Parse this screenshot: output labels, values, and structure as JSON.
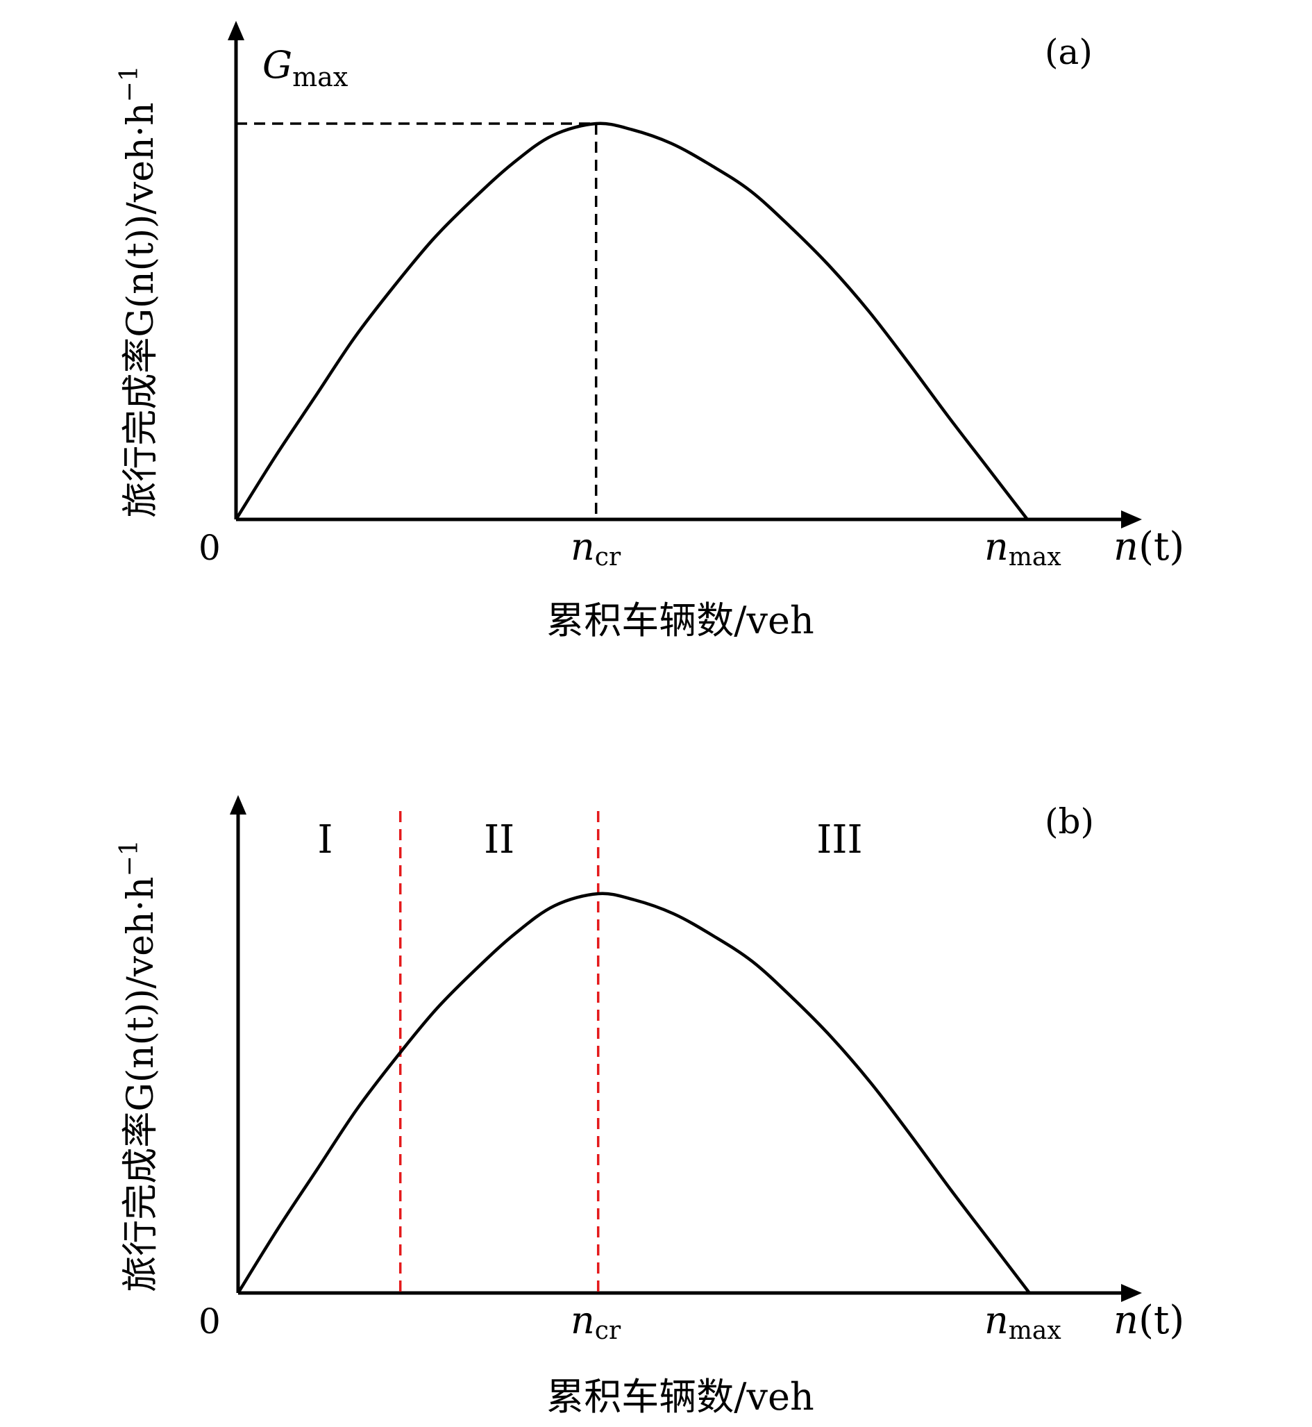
{
  "chart_data": [
    {
      "panel": "(a)",
      "type": "line",
      "ylabel": "旅行完成率G(n(t))/veh·h",
      "ylabel_sup": "−1",
      "xlabel": "累积车辆数/veh",
      "x_axis_symbol": {
        "main": "n",
        "rest": "(t)"
      },
      "origin_label": "0",
      "ticks": [
        {
          "main": "n",
          "sub": "cr",
          "x": 0.455
        },
        {
          "main": "n",
          "sub": "max",
          "x": 1.0
        }
      ],
      "peak_label": {
        "main": "G",
        "sub": "max"
      },
      "curve": {
        "x": [
          0,
          0.05,
          0.1,
          0.15,
          0.2,
          0.25,
          0.3,
          0.35,
          0.4,
          0.455,
          0.5,
          0.55,
          0.6,
          0.65,
          0.7,
          0.75,
          0.8,
          0.85,
          0.9,
          0.95,
          1.0
        ],
        "y": [
          0,
          0.16,
          0.31,
          0.46,
          0.59,
          0.71,
          0.81,
          0.9,
          0.97,
          1.0,
          0.985,
          0.95,
          0.895,
          0.83,
          0.74,
          0.64,
          0.525,
          0.395,
          0.26,
          0.13,
          0
        ]
      },
      "guides": [
        {
          "kind": "vertical",
          "x": 0.455,
          "color": "#000000"
        },
        {
          "kind": "horizontal",
          "y": 1.0,
          "color": "#000000"
        }
      ]
    },
    {
      "panel": "(b)",
      "type": "line",
      "ylabel": "旅行完成率G(n(t))/veh·h",
      "ylabel_sup": "−1",
      "xlabel": "累积车辆数/veh",
      "x_axis_symbol": {
        "main": "n",
        "rest": "(t)"
      },
      "origin_label": "0",
      "ticks": [
        {
          "main": "n",
          "sub": "cr",
          "x": 0.455
        },
        {
          "main": "n",
          "sub": "max",
          "x": 1.0
        }
      ],
      "regions": [
        {
          "label": "I",
          "x": 0.11
        },
        {
          "label": "II",
          "x": 0.33
        },
        {
          "label": "III",
          "x": 0.76
        }
      ],
      "curve": {
        "x": [
          0,
          0.05,
          0.1,
          0.15,
          0.2,
          0.25,
          0.3,
          0.35,
          0.4,
          0.455,
          0.5,
          0.55,
          0.6,
          0.65,
          0.7,
          0.75,
          0.8,
          0.85,
          0.9,
          0.95,
          1.0
        ],
        "y": [
          0,
          0.16,
          0.31,
          0.46,
          0.59,
          0.71,
          0.81,
          0.9,
          0.97,
          1.0,
          0.985,
          0.95,
          0.895,
          0.83,
          0.74,
          0.64,
          0.525,
          0.395,
          0.26,
          0.13,
          0
        ]
      },
      "guides": [
        {
          "kind": "vertical",
          "x": 0.205,
          "color": "#e41a1c"
        },
        {
          "kind": "vertical",
          "x": 0.455,
          "color": "#e41a1c"
        }
      ]
    }
  ]
}
